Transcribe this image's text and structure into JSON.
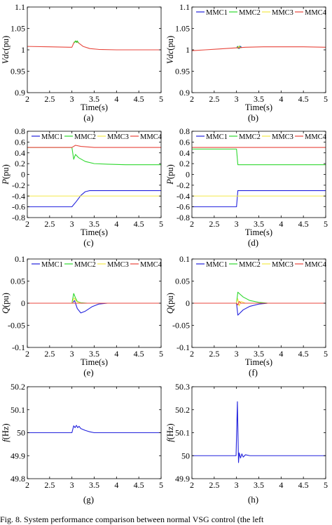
{
  "caption": "Fig. 8.   System performance comparison between normal VSG control (the left",
  "chart_data": [
    {
      "id": "a",
      "type": "line",
      "panel_label": "(a)",
      "ylabel": "Vdc(pu)",
      "ylabel_main": "V",
      "ylabel_sub": "dc",
      "ylabel_unit": "(pu)",
      "xlabel": "Time(s)",
      "xlim": [
        2,
        5
      ],
      "ylim": [
        0.9,
        1.1
      ],
      "xticks": [
        2,
        2.5,
        3,
        3.5,
        4,
        4.5,
        5
      ],
      "xtick_labels": [
        "2",
        "2.5",
        "3",
        "3.5",
        "4",
        "4.5",
        "5"
      ],
      "yticks": [
        0.9,
        0.95,
        1,
        1.05,
        1.1
      ],
      "ytick_labels": [
        "0.9",
        "0.95",
        "1",
        "1.05",
        "1.1"
      ],
      "legend": [],
      "series": [
        {
          "color": "#e8463c",
          "x": [
            2,
            2.5,
            2.95,
            3.0,
            3.05,
            3.1,
            3.15,
            3.25,
            3.4,
            3.6,
            4,
            4.5,
            5
          ],
          "y": [
            1.008,
            1.007,
            1.006,
            1.006,
            1.018,
            1.02,
            1.016,
            1.008,
            1.003,
            1.001,
            1.0,
            1.0,
            1.0
          ]
        },
        {
          "color": "#2ed82e",
          "x": [
            3.05,
            3.08,
            3.1,
            3.12,
            3.15
          ],
          "y": [
            1.016,
            1.021,
            1.017,
            1.021,
            1.016
          ]
        }
      ]
    },
    {
      "id": "b",
      "type": "line",
      "panel_label": "(b)",
      "ylabel": "Vdc(pu)",
      "ylabel_main": "V",
      "ylabel_sub": "dc",
      "ylabel_unit": "(pu)",
      "xlabel": "Time(s)",
      "xlim": [
        2,
        5
      ],
      "ylim": [
        0.9,
        1.1
      ],
      "xticks": [
        2,
        2.5,
        3,
        3.5,
        4,
        4.5,
        5
      ],
      "xtick_labels": [
        "2",
        "2.5",
        "3",
        "3.5",
        "4",
        "4.5",
        "5"
      ],
      "yticks": [
        0.9,
        0.95,
        1,
        1.05,
        1.1
      ],
      "ytick_labels": [
        "0.9",
        "0.95",
        "1",
        "1.05",
        "1.1"
      ],
      "legend": [
        "MMC1",
        "MMC2",
        "MMC3",
        "MMC4"
      ],
      "series": [
        {
          "name": "MMC1",
          "color": "#2222dd",
          "x": [
            3.0,
            3.03,
            3.06,
            3.09,
            3.12
          ],
          "y": [
            1.004,
            1.008,
            1.003,
            1.008,
            1.005
          ]
        },
        {
          "name": "MMC2",
          "color": "#2ed82e",
          "x": [
            3.01,
            3.04,
            3.07,
            3.1
          ],
          "y": [
            1.008,
            1.003,
            1.009,
            1.004
          ]
        },
        {
          "name": "MMC3",
          "color": "#f2e84a",
          "x": [
            3.02,
            3.05,
            3.08
          ],
          "y": [
            1.004,
            1.008,
            1.004
          ]
        },
        {
          "name": "MMC4",
          "color": "#e8463c",
          "x": [
            2,
            2.3,
            2.6,
            2.9,
            3.2,
            3.6,
            4,
            4.5,
            5
          ],
          "y": [
            0.998,
            1.0,
            1.002,
            1.004,
            1.006,
            1.007,
            1.007,
            1.007,
            1.006
          ]
        }
      ]
    },
    {
      "id": "c",
      "type": "line",
      "panel_label": "(c)",
      "ylabel": "P(pu)",
      "ylabel_main": "P",
      "ylabel_sub": "",
      "ylabel_unit": "(pu)",
      "xlabel": "Time(s)",
      "xlim": [
        2,
        5
      ],
      "ylim": [
        -0.8,
        0.8
      ],
      "xticks": [
        2,
        2.5,
        3,
        3.5,
        4,
        4.5,
        5
      ],
      "xtick_labels": [
        "2",
        "2.5",
        "3",
        "3.5",
        "4",
        "4.5",
        "5"
      ],
      "yticks": [
        -0.8,
        -0.6,
        -0.4,
        -0.2,
        0,
        0.2,
        0.4,
        0.6,
        0.8
      ],
      "ytick_labels": [
        "-0.8",
        "-0.6",
        "-0.4",
        "-0.2",
        "0",
        "0.2",
        "0.4",
        "0.6",
        "0.8"
      ],
      "legend": [
        "MMC1",
        "MMC2",
        "MMC3",
        "MMC4"
      ],
      "series": [
        {
          "name": "MMC1",
          "color": "#2222dd",
          "x": [
            2,
            3.0,
            3.1,
            3.2,
            3.3,
            3.4,
            3.5,
            4,
            5
          ],
          "y": [
            -0.6,
            -0.6,
            -0.5,
            -0.39,
            -0.32,
            -0.3,
            -0.3,
            -0.3,
            -0.3
          ]
        },
        {
          "name": "MMC2",
          "color": "#2ed82e",
          "x": [
            2,
            3.0,
            3.04,
            3.08,
            3.15,
            3.3,
            3.5,
            3.8,
            4.2,
            5
          ],
          "y": [
            0.5,
            0.5,
            0.28,
            0.37,
            0.31,
            0.24,
            0.2,
            0.19,
            0.18,
            0.18
          ]
        },
        {
          "name": "MMC3",
          "color": "#f2e84a",
          "x": [
            2,
            5
          ],
          "y": [
            -0.4,
            -0.4
          ]
        },
        {
          "name": "MMC4",
          "color": "#e8463c",
          "x": [
            2,
            3.0,
            3.08,
            3.2,
            3.5,
            5
          ],
          "y": [
            0.5,
            0.5,
            0.54,
            0.52,
            0.5,
            0.5
          ]
        }
      ]
    },
    {
      "id": "d",
      "type": "line",
      "panel_label": "(d)",
      "ylabel": "P(pu)",
      "ylabel_main": "P",
      "ylabel_sub": "",
      "ylabel_unit": "(pu)",
      "xlabel": "Time(s)",
      "xlim": [
        2,
        5
      ],
      "ylim": [
        -0.8,
        0.8
      ],
      "xticks": [
        2,
        2.5,
        3,
        3.5,
        4,
        4.5,
        5
      ],
      "xtick_labels": [
        "2",
        "2.5",
        "3",
        "3.5",
        "4",
        "4.5",
        "5"
      ],
      "yticks": [
        -0.8,
        -0.6,
        -0.4,
        -0.2,
        0,
        0.2,
        0.4,
        0.6,
        0.8
      ],
      "ytick_labels": [
        "-0.8",
        "-0.6",
        "-0.4",
        "-0.2",
        "0",
        "0.2",
        "0.4",
        "0.6",
        "0.8"
      ],
      "legend": [
        "MMC1",
        "MMC2",
        "MMC3",
        "MMC4"
      ],
      "series": [
        {
          "name": "MMC1",
          "color": "#2222dd",
          "x": [
            2,
            3.0,
            3.03,
            5
          ],
          "y": [
            -0.6,
            -0.6,
            -0.3,
            -0.3
          ]
        },
        {
          "name": "MMC2",
          "color": "#2ed82e",
          "x": [
            2,
            3.0,
            3.03,
            5
          ],
          "y": [
            0.47,
            0.47,
            0.18,
            0.18
          ]
        },
        {
          "name": "MMC3",
          "color": "#f2e84a",
          "x": [
            2,
            5
          ],
          "y": [
            -0.4,
            -0.4
          ]
        },
        {
          "name": "MMC4",
          "color": "#e8463c",
          "x": [
            2,
            5
          ],
          "y": [
            0.5,
            0.5
          ]
        }
      ]
    },
    {
      "id": "e",
      "type": "line",
      "panel_label": "(e)",
      "ylabel": "Q(pu)",
      "ylabel_main": "Q",
      "ylabel_sub": "",
      "ylabel_unit": "(pu)",
      "xlabel": "Time(s)",
      "xlim": [
        2,
        5
      ],
      "ylim": [
        -0.1,
        0.1
      ],
      "xticks": [
        2,
        2.5,
        3,
        3.5,
        4,
        4.5,
        5
      ],
      "xtick_labels": [
        "2",
        "2.5",
        "3",
        "3.5",
        "4",
        "4.5",
        "5"
      ],
      "yticks": [
        -0.1,
        -0.05,
        0,
        0.05,
        0.1
      ],
      "ytick_labels": [
        "-0.1",
        "-0.05",
        "0",
        "0.05",
        "0.1"
      ],
      "legend": [
        "MMC1",
        "MMC2",
        "MMC3",
        "MMC4"
      ],
      "series": [
        {
          "name": "MMC1",
          "color": "#2222dd",
          "x": [
            2,
            3.0,
            3.06,
            3.12,
            3.2,
            3.3,
            3.45,
            3.6,
            3.8,
            5
          ],
          "y": [
            0,
            0,
            0.006,
            -0.012,
            -0.022,
            -0.018,
            -0.008,
            -0.002,
            0,
            0
          ]
        },
        {
          "name": "MMC2",
          "color": "#2ed82e",
          "x": [
            2,
            3.0,
            3.04,
            3.08,
            3.12,
            3.2,
            3.35,
            3.5,
            5
          ],
          "y": [
            0,
            0,
            0.022,
            0.012,
            0.004,
            0.001,
            0,
            0,
            0
          ]
        },
        {
          "name": "MMC3",
          "color": "#f2e84a",
          "x": [
            2,
            3.0,
            3.05,
            3.1,
            3.2,
            5
          ],
          "y": [
            0,
            0,
            0.012,
            0.004,
            0,
            0
          ]
        },
        {
          "name": "MMC4",
          "color": "#e8463c",
          "x": [
            2,
            5
          ],
          "y": [
            0,
            0
          ]
        }
      ]
    },
    {
      "id": "f",
      "type": "line",
      "panel_label": "(f)",
      "ylabel": "Q(pu)",
      "ylabel_main": "Q",
      "ylabel_sub": "",
      "ylabel_unit": "(pu)",
      "xlabel": "Time(s)",
      "xlim": [
        2,
        5
      ],
      "ylim": [
        -0.1,
        0.1
      ],
      "xticks": [
        2,
        2.5,
        3,
        3.5,
        4,
        4.5,
        5
      ],
      "xtick_labels": [
        "2",
        "2.5",
        "3",
        "3.5",
        "4",
        "4.5",
        "5"
      ],
      "yticks": [
        -0.1,
        -0.05,
        0,
        0.05,
        0.1
      ],
      "ytick_labels": [
        "-0.1",
        "-0.05",
        "0",
        "0.05",
        "0.1"
      ],
      "legend": [
        "MMC1",
        "MMC2",
        "MMC3",
        "MMC4"
      ],
      "series": [
        {
          "name": "MMC1",
          "color": "#2222dd",
          "x": [
            2,
            3.0,
            3.03,
            3.06,
            3.15,
            3.3,
            3.5,
            3.7,
            5
          ],
          "y": [
            0,
            0,
            -0.027,
            -0.024,
            -0.015,
            -0.007,
            -0.002,
            0,
            0
          ]
        },
        {
          "name": "MMC2",
          "color": "#2ed82e",
          "x": [
            2,
            3.0,
            3.03,
            3.06,
            3.15,
            3.3,
            3.5,
            3.7,
            5
          ],
          "y": [
            0,
            0,
            0.025,
            0.022,
            0.014,
            0.006,
            0.002,
            0,
            0
          ]
        },
        {
          "name": "MMC3",
          "color": "#f2e84a",
          "x": [
            2,
            3.0,
            3.03,
            3.06,
            3.1,
            3.2,
            5
          ],
          "y": [
            0,
            0,
            0.01,
            -0.006,
            0.004,
            0,
            0
          ]
        },
        {
          "name": "MMC4",
          "color": "#e8463c",
          "x": [
            2,
            3.0,
            3.03,
            3.06,
            3.1,
            5
          ],
          "y": [
            0,
            0,
            -0.004,
            0.004,
            0,
            0
          ]
        }
      ]
    },
    {
      "id": "g",
      "type": "line",
      "panel_label": "(g)",
      "ylabel": "f(Hz)",
      "ylabel_main": "f",
      "ylabel_sub": "",
      "ylabel_unit": "(Hz)",
      "xlabel": "",
      "xlim": [
        2,
        5
      ],
      "ylim": [
        49.8,
        50.2
      ],
      "xticks": [
        2,
        2.5,
        3,
        3.5,
        4,
        4.5,
        5
      ],
      "xtick_labels": [
        "2",
        "2.5",
        "3",
        "3.5",
        "4",
        "4.5",
        "5"
      ],
      "yticks": [
        49.8,
        49.9,
        50,
        50.1,
        50.2
      ],
      "ytick_labels": [
        "49.8",
        "49.9",
        "50",
        "50.1",
        "50.2"
      ],
      "legend": [],
      "series": [
        {
          "color": "#2222dd",
          "x": [
            2,
            3.0,
            3.04,
            3.07,
            3.1,
            3.13,
            3.16,
            3.2,
            3.3,
            3.4,
            3.5,
            5
          ],
          "y": [
            50,
            50,
            50.03,
            50.022,
            50.032,
            50.022,
            50.028,
            50.018,
            50.01,
            50.004,
            50,
            50
          ]
        }
      ]
    },
    {
      "id": "h",
      "type": "line",
      "panel_label": "(h)",
      "ylabel": "f(Hz)",
      "ylabel_main": "f",
      "ylabel_sub": "",
      "ylabel_unit": "(Hz)",
      "xlabel": "",
      "xlim": [
        2,
        5
      ],
      "ylim": [
        49.9,
        50.3
      ],
      "xticks": [
        2,
        2.5,
        3,
        3.5,
        4,
        4.5,
        5
      ],
      "xtick_labels": [
        "2",
        "2.5",
        "3",
        "3.5",
        "4",
        "4.5",
        "5"
      ],
      "yticks": [
        49.9,
        50,
        50.1,
        50.2,
        50.3
      ],
      "ytick_labels": [
        "49.9",
        "50",
        "50.1",
        "50.2",
        "50.3"
      ],
      "legend": [],
      "series": [
        {
          "color": "#2222dd",
          "x": [
            2,
            2.99,
            3.02,
            3.045,
            3.06,
            3.09,
            3.12,
            3.15,
            3.2,
            3.3,
            3.5,
            5
          ],
          "y": [
            50,
            50,
            50.235,
            49.97,
            50.012,
            49.99,
            50.008,
            49.994,
            50.004,
            50,
            50,
            50
          ]
        }
      ]
    }
  ]
}
